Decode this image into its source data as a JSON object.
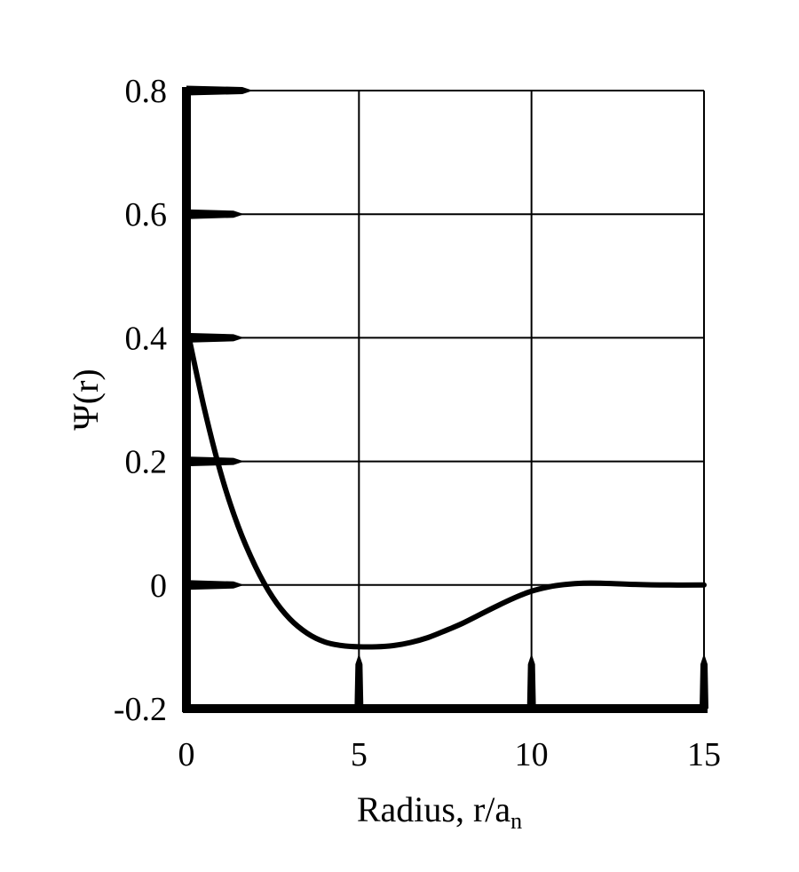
{
  "chart_data": {
    "type": "line",
    "title": "",
    "xlabel": "Radius, r/a",
    "xlabel_subscript": "n",
    "ylabel": "Ψ(r)",
    "xlim": [
      0,
      15
    ],
    "ylim": [
      -0.2,
      0.8
    ],
    "xticks": [
      0,
      5,
      10,
      15
    ],
    "xtick_labels": [
      "0",
      "5",
      "10",
      "15"
    ],
    "yticks": [
      -0.2,
      0,
      0.2,
      0.4,
      0.6,
      0.8
    ],
    "ytick_labels": [
      "-0.2",
      "0",
      "0.2",
      "0.4",
      "0.6",
      "0.8"
    ],
    "grid": true,
    "line_color": "#000000",
    "series": [
      {
        "x": [
          0,
          0.5,
          1,
          1.5,
          2,
          2.5,
          3,
          3.5,
          4,
          4.5,
          5,
          5.5,
          6,
          6.5,
          7,
          7.5,
          8,
          8.5,
          9,
          9.5,
          10,
          10.5,
          11,
          11.5,
          12,
          13,
          14,
          15
        ],
        "y": [
          0.42,
          0.29,
          0.18,
          0.095,
          0.03,
          -0.02,
          -0.055,
          -0.078,
          -0.092,
          -0.098,
          -0.1,
          -0.1,
          -0.098,
          -0.093,
          -0.085,
          -0.074,
          -0.062,
          -0.048,
          -0.034,
          -0.021,
          -0.01,
          -0.003,
          0.001,
          0.003,
          0.003,
          0.001,
          0.0,
          0.0
        ]
      }
    ]
  }
}
